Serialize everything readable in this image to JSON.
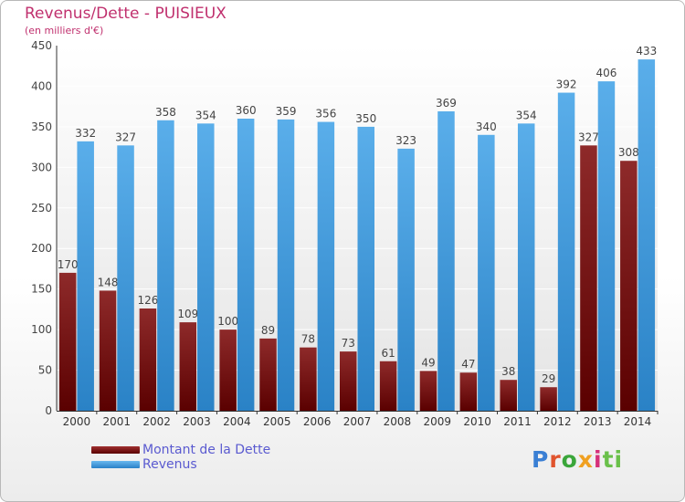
{
  "header": {
    "title": "Revenus/Dette - PUISIEUX",
    "subtitle": "(en milliers d'€)"
  },
  "legend": {
    "items": [
      {
        "label": "Montant de la Dette",
        "color": "#7a1010"
      },
      {
        "label": "Revenus",
        "color": "#3d9be0"
      }
    ]
  },
  "logo": {
    "text": "Proxiti",
    "letters": [
      "P",
      "r",
      "o",
      "x",
      "i",
      "ti"
    ]
  },
  "chart_data": {
    "type": "bar",
    "categories": [
      "2000",
      "2001",
      "2002",
      "2003",
      "2004",
      "2005",
      "2006",
      "2007",
      "2008",
      "2009",
      "2010",
      "2011",
      "2012",
      "2013",
      "2014"
    ],
    "series": [
      {
        "name": "Montant de la Dette",
        "color": "#7a1010",
        "values": [
          170,
          148,
          126,
          109,
          100,
          89,
          78,
          73,
          61,
          49,
          47,
          38,
          29,
          327,
          308
        ]
      },
      {
        "name": "Revenus",
        "color": "#3d9be0",
        "values": [
          332,
          327,
          358,
          354,
          360,
          359,
          356,
          350,
          323,
          369,
          340,
          354,
          392,
          406,
          433
        ]
      }
    ],
    "yticks": [
      0,
      50,
      100,
      150,
      200,
      250,
      300,
      350,
      400,
      450
    ],
    "ylim": [
      0,
      450
    ],
    "title": "Revenus/Dette - PUISIEUX",
    "xlabel": "",
    "ylabel": "",
    "grid": true,
    "legend": "bottom-left"
  }
}
